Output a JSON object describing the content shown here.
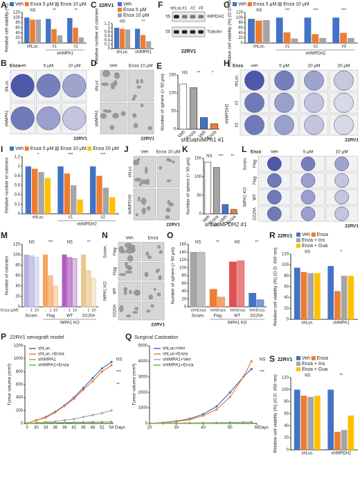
{
  "chart_data": [
    {
      "letter": "A",
      "type": "bar",
      "categories": [
        "shLuc.",
        "#1",
        "#2"
      ],
      "xlabel": "shIMPA1",
      "legend": true,
      "series": [
        {
          "name": "Veh",
          "color": "#4472c4",
          "values": [
            100,
            95,
            98
          ]
        },
        {
          "name": "Enza 5 μM",
          "color": "#ed7d31",
          "values": [
            92,
            55,
            60
          ]
        },
        {
          "name": "Enza 10 μM",
          "color": "#a5a5a5",
          "values": [
            92,
            30,
            22
          ]
        }
      ],
      "ylabel": "Relative cell viability (%)",
      "ylim": [
        0,
        120
      ],
      "yticks": [
        0,
        20,
        40,
        60,
        80,
        100,
        120
      ],
      "annotations": [
        "NS",
        "**",
        "**"
      ]
    },
    {
      "letter": "C",
      "type": "bar",
      "title": "22RV1",
      "categories": [
        "shLuc.",
        "shIMPA1"
      ],
      "legend": true,
      "series": [
        {
          "name": "Veh",
          "color": "#4472c4",
          "values": [
            1,
            0.95
          ]
        },
        {
          "name": "Enza 5 μM",
          "color": "#ed7d31",
          "values": [
            0.95,
            0.65
          ]
        },
        {
          "name": "Enza 10 μM",
          "color": "#a5a5a5",
          "values": [
            0.92,
            0.35
          ]
        }
      ],
      "ylabel": "Relative number of colonies",
      "ylim": [
        0,
        1.2
      ],
      "yticks": [
        0,
        0.2,
        0.4,
        0.6,
        0.8,
        1,
        1.2
      ],
      "annotations": [
        "NS",
        "**"
      ]
    },
    {
      "letter": "E",
      "type": "bar",
      "categories": [
        "Veh",
        "Enza",
        "Veh",
        "Enza"
      ],
      "values": [
        125,
        115,
        32,
        15
      ],
      "colors": [
        "#ffffff",
        "#a5a5a5",
        "#4472c4",
        "#ed7d31"
      ],
      "xgroups": [
        "shLuc",
        "shIMPA1 #1"
      ],
      "ylabel": "Number of sphere (> 50 μm)",
      "ylim": [
        0,
        150
      ],
      "yticks": [
        0,
        50,
        100,
        150
      ],
      "annotations": [
        "NS",
        "**",
        "*"
      ]
    },
    {
      "letter": "G",
      "type": "bar",
      "categories": [
        "shLuc.",
        "#1",
        "#2",
        "#3"
      ],
      "xlabel": "shIMPDH2",
      "legend": true,
      "series": [
        {
          "name": "Veh",
          "color": "#4472c4",
          "values": [
            95,
            100,
            100,
            100
          ]
        },
        {
          "name": "Enza 5 μM",
          "color": "#ed7d31",
          "values": [
            88,
            42,
            35,
            40
          ]
        },
        {
          "name": "Enza 10 μM",
          "color": "#a5a5a5",
          "values": [
            90,
            18,
            20,
            20
          ]
        }
      ],
      "ylabel": "Relative cell viability (%) (O.D. 450 nm)",
      "ylim": [
        0,
        120
      ],
      "yticks": [
        0,
        20,
        40,
        60,
        80,
        100,
        120
      ],
      "annotations": [
        "NS",
        "***",
        "***",
        "***"
      ]
    },
    {
      "letter": "I",
      "type": "bar",
      "categories": [
        "shLuc.",
        "#1",
        "#2"
      ],
      "xlabel": "shIMPDH2",
      "legend": true,
      "series": [
        {
          "name": "Veh",
          "color": "#4472c4",
          "values": [
            1,
            1,
            1
          ]
        },
        {
          "name": "Enza 5 μM",
          "color": "#ed7d31",
          "values": [
            0.95,
            0.85,
            0.8
          ]
        },
        {
          "name": "Enza 10 μM",
          "color": "#a5a5a5",
          "values": [
            0.88,
            0.6,
            0.55
          ]
        },
        {
          "name": "Enza 20 μM",
          "color": "#ffc000",
          "values": [
            0.75,
            0.3,
            0.35
          ]
        }
      ],
      "ylabel": "Relative number of colonies",
      "ylim": [
        0,
        1.2
      ],
      "yticks": [
        0,
        0.2,
        0.4,
        0.6,
        0.8,
        1,
        1.2
      ],
      "annotations": [
        "*",
        "***",
        "***"
      ]
    },
    {
      "letter": "K",
      "type": "bar",
      "categories": [
        "Veh",
        "Enza",
        "Veh",
        "Enza"
      ],
      "values": [
        140,
        125,
        25,
        12
      ],
      "colors": [
        "#ffffff",
        "#a5a5a5",
        "#4472c4",
        "#ed7d31"
      ],
      "xgroups": [
        "shLuc",
        "shIMPDH2 #1"
      ],
      "ylabel": "Number of sphere (> 50 μm)",
      "ylim": [
        0,
        150
      ],
      "yticks": [
        0,
        50,
        100,
        150
      ],
      "annotations": [
        "NS",
        "***",
        "**"
      ]
    },
    {
      "letter": "M",
      "type": "bar",
      "categories": [
        "Scram.",
        "Flag",
        "WT",
        "D220A"
      ],
      "xlabel": "IMPA1 KO",
      "bar_labels": true,
      "axis_note": "Enza (μM)",
      "colors": [
        "#b4b0e0",
        "#f4a460",
        "#b05fc0",
        "#e8c890"
      ],
      "series": [
        {
          "name": "-",
          "values": [
            100,
            100,
            100,
            100
          ]
        },
        {
          "name": "1",
          "values": [
            98,
            60,
            95,
            70
          ]
        },
        {
          "name": "10",
          "values": [
            95,
            40,
            93,
            55
          ]
        }
      ],
      "ylabel": "Number of colonies",
      "ylim": [
        0,
        120
      ],
      "yticks": [
        0,
        20,
        40,
        60,
        80,
        100,
        120
      ],
      "annotations": [
        "NS",
        "***",
        "NS",
        "**"
      ]
    },
    {
      "letter": "O",
      "type": "bar",
      "categories": [
        "Scram.",
        "Flag",
        "WT",
        "D220A"
      ],
      "xlabel": "IMPA1 KO",
      "bar_labels": true,
      "colors": [
        "#a5a5a5",
        "#ed7d31",
        "#e05050",
        "#4472c4"
      ],
      "series": [
        {
          "name": "Veh",
          "values": [
            140,
            45,
            115,
            35
          ]
        },
        {
          "name": "Enza",
          "values": [
            140,
            25,
            118,
            18
          ]
        }
      ],
      "ylabel": "Number of sphere (> 50 μm)",
      "ylim": [
        0,
        160
      ],
      "yticks": [
        0,
        20,
        40,
        60,
        80,
        100,
        120,
        140,
        160
      ],
      "annotations": [
        "NS",
        "**",
        "NS",
        "**"
      ]
    },
    {
      "letter": "R",
      "type": "bar",
      "title": "22RV1",
      "categories": [
        "shLuc.",
        "shIMPA1"
      ],
      "legend": true,
      "series": [
        {
          "name": "Veh",
          "color": "#4472c4",
          "values": [
            95,
            98
          ]
        },
        {
          "name": "Enza",
          "color": "#ed7d31",
          "values": [
            87,
            52
          ]
        },
        {
          "name": "Enza + Ins",
          "color": "#a5a5a5",
          "values": [
            85,
            80
          ]
        },
        {
          "name": "Enza + Gua",
          "color": "#ffc000",
          "values": [
            85,
            80
          ]
        }
      ],
      "ylabel": "Relative cell viability (%) (O.D. 450 nm)",
      "ylim": [
        0,
        120
      ],
      "yticks": [
        0,
        20,
        40,
        60,
        80,
        100,
        120
      ],
      "annotations": [
        "NS",
        "*"
      ]
    },
    {
      "letter": "P",
      "type": "line",
      "title": "22RV1 xenograft model",
      "categories": [
        "0",
        "30",
        "33",
        "36",
        "39",
        "42",
        "45",
        "48",
        "51",
        "54"
      ],
      "xlabel": "Days",
      "series": [
        {
          "name": "shLuc.",
          "color": "#4472c4",
          "values": [
            0,
            50,
            100,
            180,
            280,
            400,
            550,
            700,
            850,
            950
          ]
        },
        {
          "name": "shLuc.+Enza",
          "color": "#ed7d31",
          "values": [
            0,
            50,
            90,
            170,
            270,
            380,
            520,
            650,
            800,
            900
          ]
        },
        {
          "name": "shIMPA1",
          "color": "#a5a5a5",
          "values": [
            0,
            10,
            20,
            30,
            50,
            70,
            100,
            130,
            160,
            200
          ]
        },
        {
          "name": "shIMPA1+Enza",
          "color": "#70ad47",
          "values": [
            0,
            5,
            8,
            10,
            12,
            15,
            18,
            20,
            22,
            25
          ]
        }
      ],
      "ylabel": "Tumor volume (mm³)",
      "ylim": [
        0,
        1200
      ],
      "yticks": [
        0,
        200,
        400,
        600,
        800,
        1000,
        1200
      ],
      "annotations": [
        "NS",
        "***",
        "**"
      ]
    },
    {
      "letter": "Q",
      "type": "line",
      "title": "Surgical Castration",
      "x": [
        20,
        25,
        30,
        35,
        40,
        45,
        50,
        55,
        58
      ],
      "xlim": [
        20,
        60
      ],
      "xticks": [
        20,
        30,
        40,
        50,
        60
      ],
      "xlabel": "Days",
      "series": [
        {
          "name": "shLuc+Ven",
          "color": "#4472c4",
          "values": [
            0,
            50,
            150,
            300,
            600,
            1100,
            2000,
            3000,
            3500
          ]
        },
        {
          "name": "shLuc+Enza",
          "color": "#ed7d31",
          "values": [
            0,
            40,
            120,
            250,
            500,
            900,
            1700,
            3000,
            4000
          ]
        },
        {
          "name": "shIMPA1+Ven",
          "color": "#a5a5a5",
          "values": [
            0,
            10,
            20,
            30,
            40,
            50,
            60,
            80,
            100
          ]
        },
        {
          "name": "shIMPA1+Enza",
          "color": "#70ad47",
          "values": [
            0,
            5,
            8,
            10,
            12,
            15,
            18,
            20,
            22
          ]
        }
      ],
      "ylabel": "Tumor volume (mm³)",
      "ylim": [
        0,
        5000
      ],
      "yticks": [
        0,
        1000,
        2000,
        3000,
        4000,
        5000
      ],
      "annotations": [
        "NS",
        "***"
      ]
    },
    {
      "letter": "S",
      "type": "bar",
      "title": "22RV1",
      "categories": [
        "shLuc.",
        "shIMPDH2"
      ],
      "legend": true,
      "series": [
        {
          "name": "Veh",
          "color": "#4472c4",
          "values": [
            100,
            100
          ]
        },
        {
          "name": "Enza",
          "color": "#ed7d31",
          "values": [
            90,
            30
          ]
        },
        {
          "name": "Enza + Ins",
          "color": "#a5a5a5",
          "values": [
            88,
            33
          ]
        },
        {
          "name": "Enza + Gua",
          "color": "#ffc000",
          "values": [
            90,
            57
          ]
        }
      ],
      "ylabel": "Relative cell viability (%) (O.D. 450 nm)",
      "ylim": [
        0,
        120
      ],
      "yticks": [
        0,
        20,
        40,
        60,
        80,
        100,
        120
      ],
      "annotations": [
        "NS",
        "**"
      ]
    }
  ],
  "images": [
    {
      "letter": "B",
      "kind": "dish",
      "corner": "Enza",
      "columns": [
        "veh",
        "5 μM",
        "10 μM"
      ],
      "rows": [
        "shLuc.",
        "shIMPA1"
      ],
      "caption": "22RV1"
    },
    {
      "letter": "D",
      "kind": "micro",
      "columns": [
        "Veh",
        "Enza 10 μM"
      ],
      "rows": [
        "shLuc",
        "shIMPA1"
      ],
      "caption": "22RV1"
    },
    {
      "letter": "F",
      "kind": "blot",
      "columns": [
        "shLuc.",
        "#1",
        "#2",
        "#3"
      ],
      "rows": [
        "IMPDH2",
        "Tubulin"
      ],
      "markers": [
        "55",
        "55"
      ],
      "caption": "22RV1"
    },
    {
      "letter": "H",
      "kind": "dish",
      "corner": "Enza",
      "columns": [
        "veh",
        "5 μM",
        "10 μM",
        "20 μM"
      ],
      "rows": [
        "shLuc.",
        "#1",
        "#2"
      ],
      "groups": [
        "shIMPDH2"
      ],
      "caption": "22RV1"
    },
    {
      "letter": "J",
      "kind": "micro",
      "columns": [
        "Veh",
        "Enza 10 μM"
      ],
      "rows": [
        "shLuc",
        "shIMPDH2"
      ],
      "caption": "22RV1"
    },
    {
      "letter": "L",
      "kind": "dish",
      "corner": "Enza",
      "columns": [
        "Veh",
        "5 μM",
        "10 μM"
      ],
      "rows": [
        "Flag",
        "Flag",
        "WT",
        "D220A"
      ],
      "groups": [
        "Scram.",
        "IMPA1 KO"
      ],
      "caption": "22RV1"
    },
    {
      "letter": "N",
      "kind": "micro",
      "columns": [
        "Veh",
        "Enza"
      ],
      "rows": [
        "Flag",
        "Flag",
        "WT",
        "D220A"
      ],
      "groups": [
        "Scram.",
        "IMPA1 KO"
      ],
      "caption": "22RV1"
    }
  ]
}
